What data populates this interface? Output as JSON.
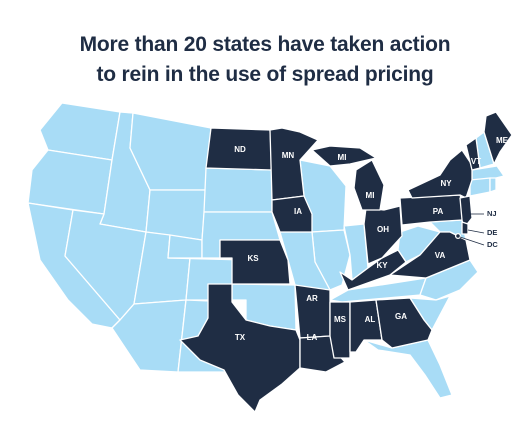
{
  "title": {
    "line1": "More than 20 states have taken action",
    "line2": "to rein in the use of spread pricing"
  },
  "colors": {
    "action": "#1f2d44",
    "no_action": "#a8dcf6",
    "border": "#ffffff"
  },
  "states_with_action": [
    "ND",
    "MN",
    "MI",
    "IA",
    "KS",
    "TX",
    "AR",
    "LA",
    "MS",
    "AL",
    "GA",
    "KY",
    "OH",
    "PA",
    "NY",
    "VT",
    "ME",
    "NJ",
    "DE",
    "DC",
    "VA"
  ],
  "labels": {
    "ND": "ND",
    "MN": "MN",
    "MI_UP": "MI",
    "MI": "MI",
    "IA": "IA",
    "KS": "KS",
    "TX": "TX",
    "AR": "AR",
    "LA": "LA",
    "MS": "MS",
    "AL": "AL",
    "GA": "GA",
    "KY": "KY",
    "OH": "OH",
    "PA": "PA",
    "NY": "NY",
    "VT": "VT",
    "ME": "ME",
    "VA": "VA",
    "NJ": "NJ",
    "DE": "DE",
    "DC": "DC"
  }
}
